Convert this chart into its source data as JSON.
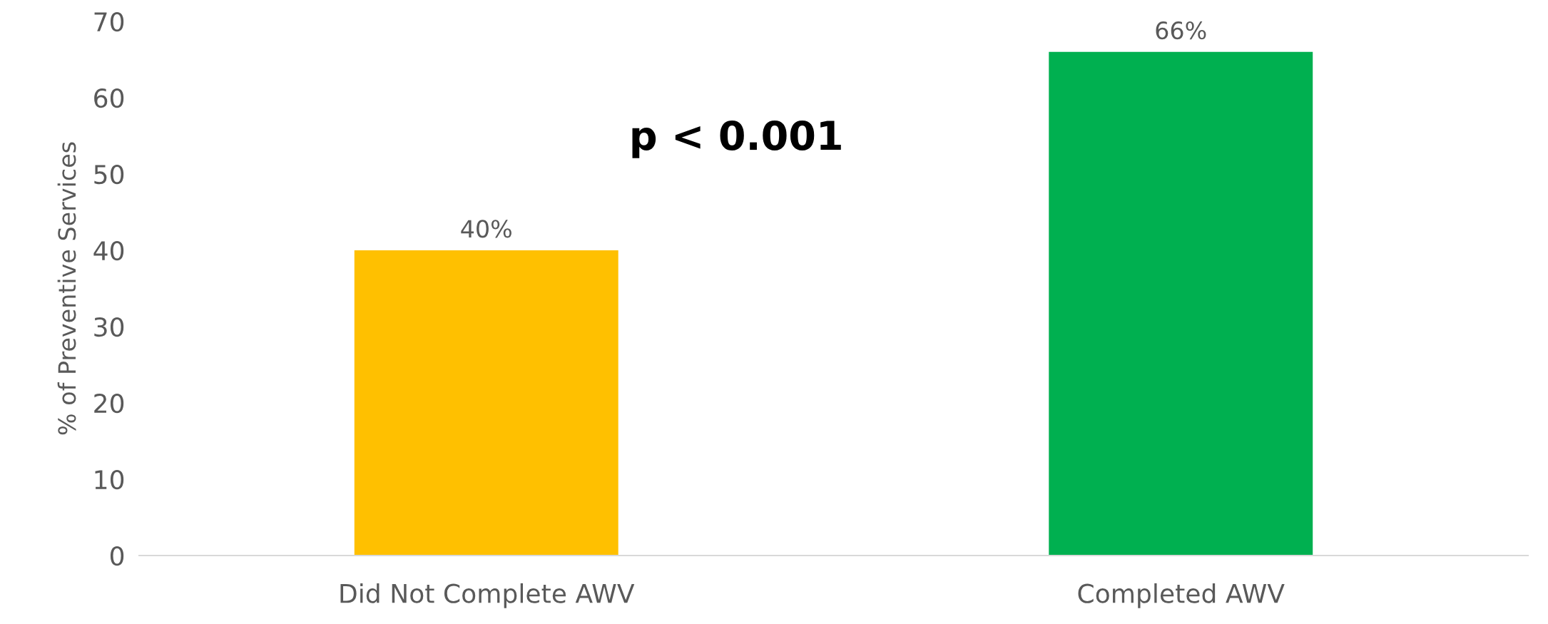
{
  "chart_data": {
    "type": "bar",
    "ylabel": "% of Preventive Services",
    "categories": [
      "Did Not Complete AWV",
      "Completed AWV"
    ],
    "values": [
      40,
      66
    ],
    "colors": [
      "#ffc000",
      "#00b050"
    ],
    "value_labels": [
      "40%",
      "66%"
    ],
    "ylim": [
      0,
      70
    ],
    "yticks": [
      0,
      10,
      20,
      30,
      40,
      50,
      60,
      70
    ],
    "grid": false,
    "legend": false,
    "annotations": [
      "p < 0.001"
    ]
  }
}
